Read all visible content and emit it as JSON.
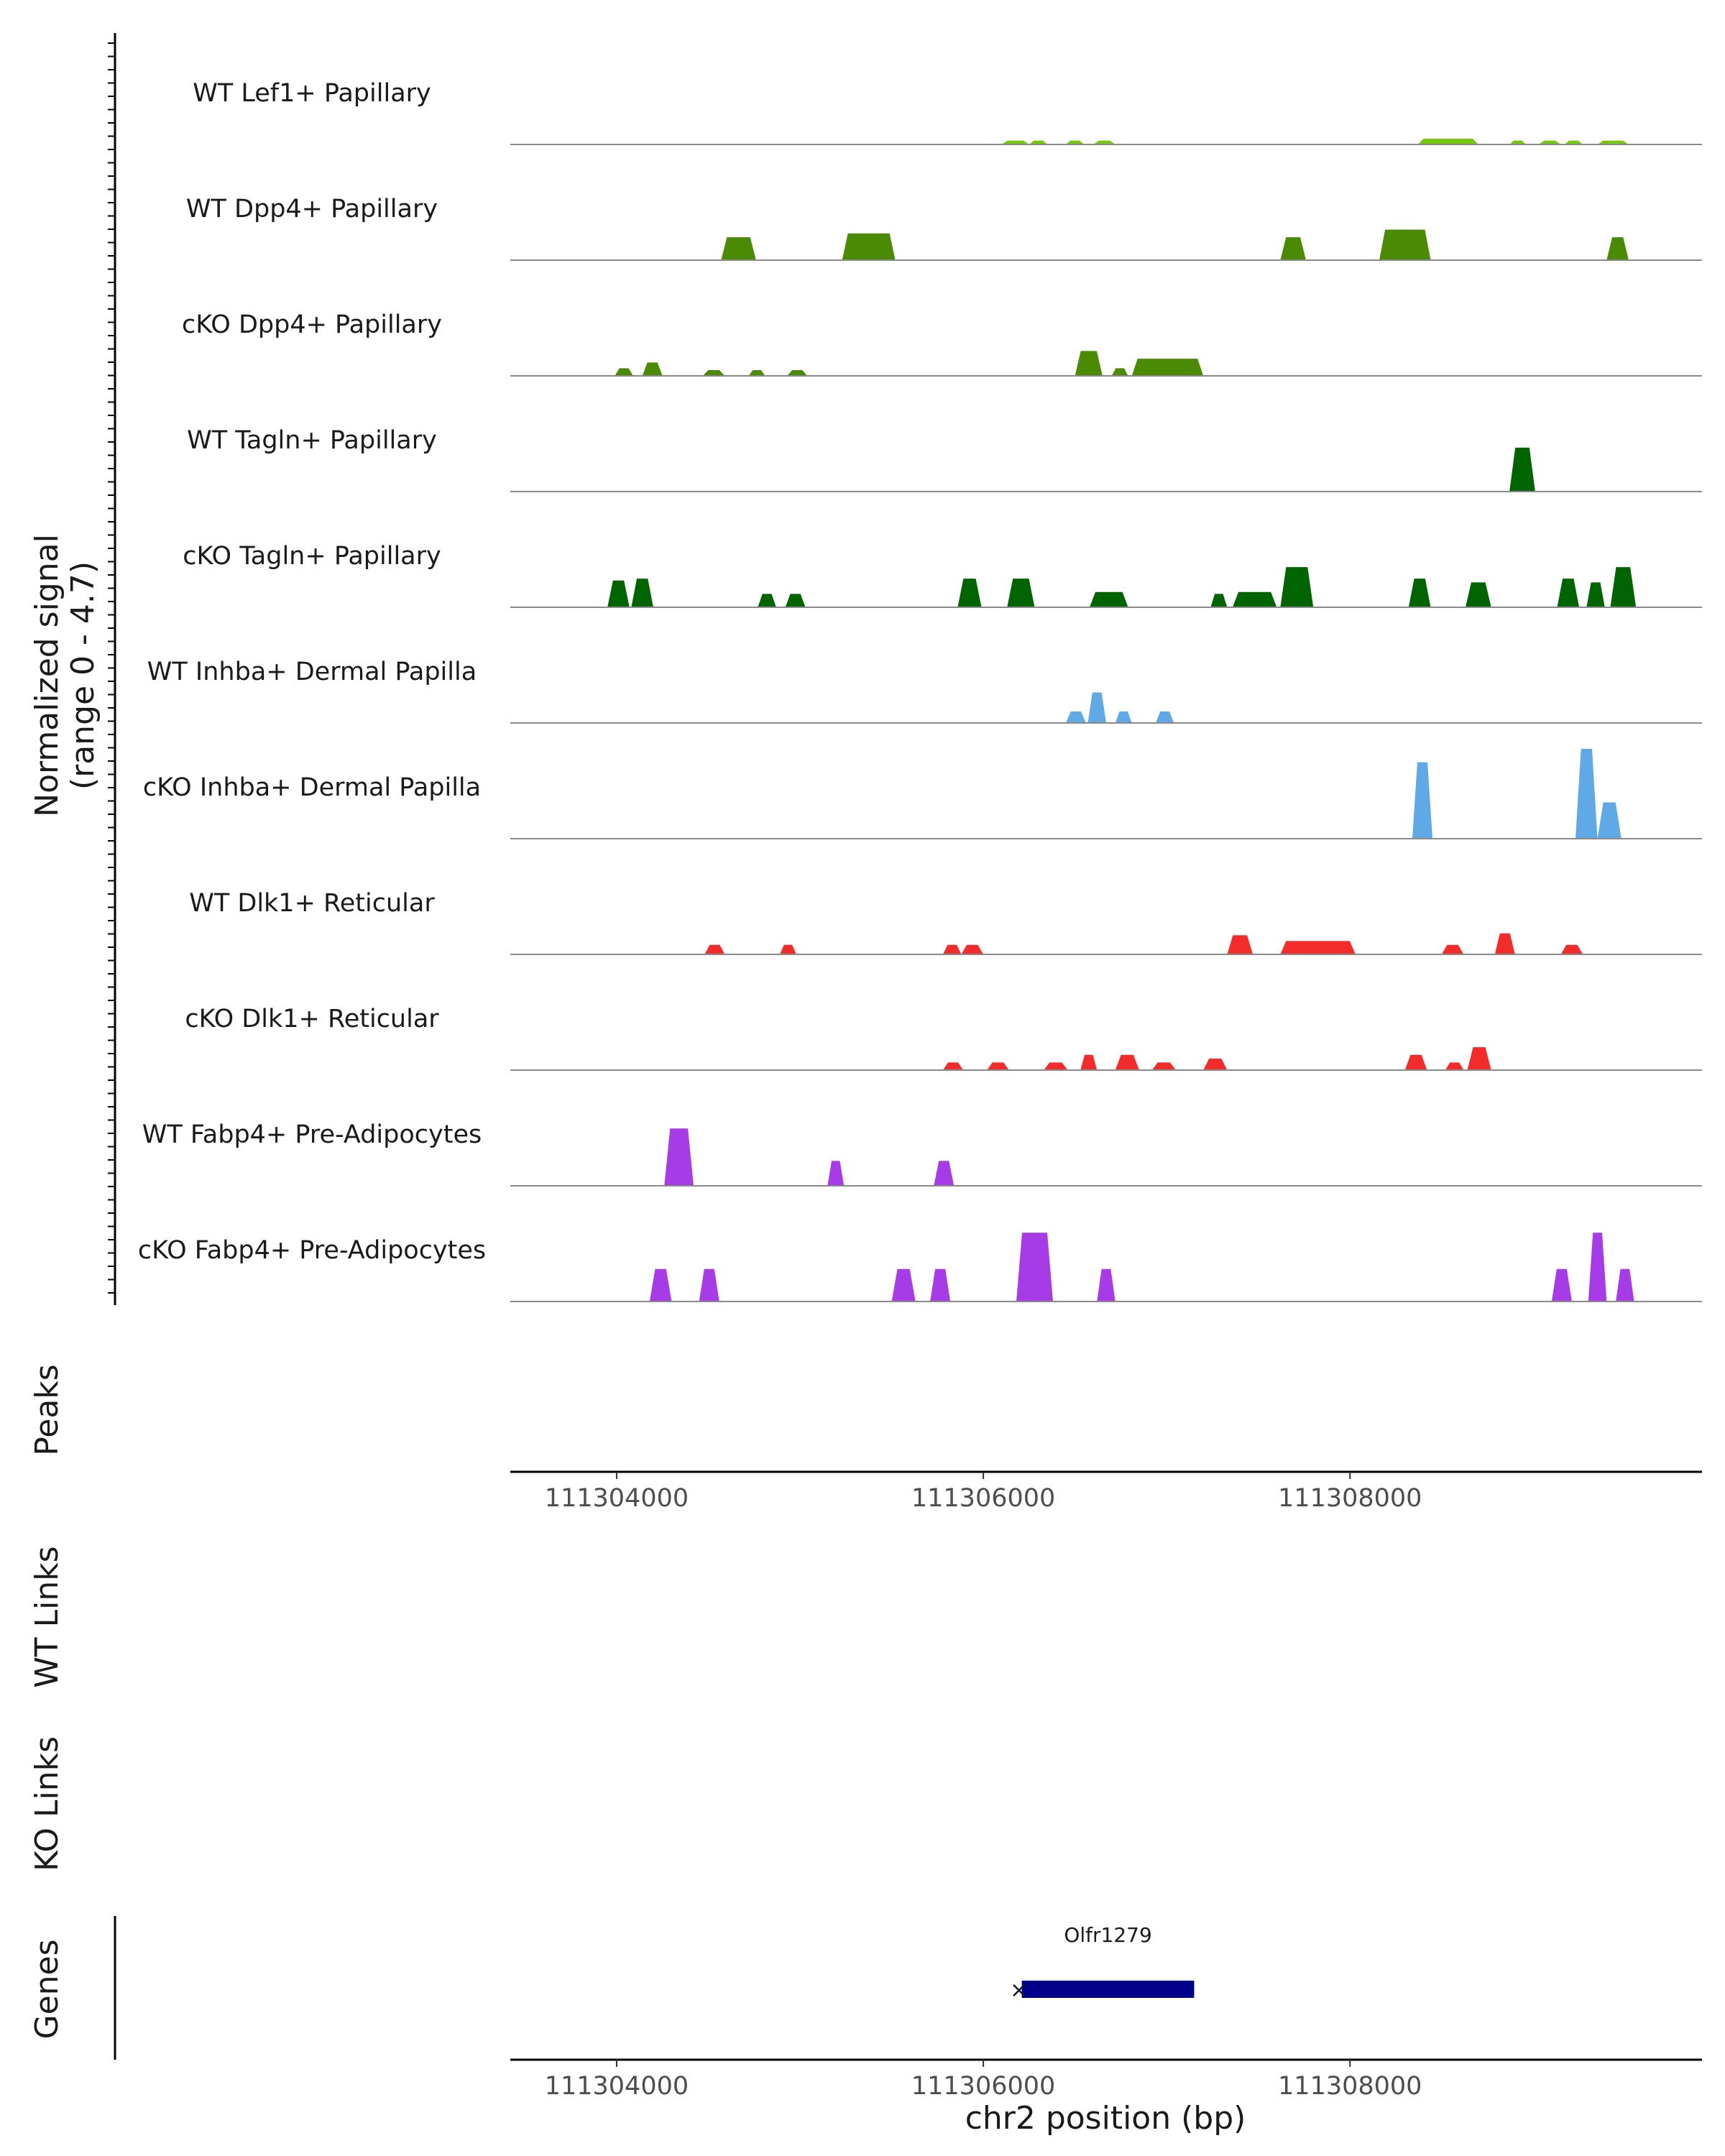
{
  "chart_data": {
    "type": "area",
    "title": "",
    "xlabel": "chr2 position (bp)",
    "coverage_ylabel": "Normalized signal",
    "coverage_range": "(range 0 - 4.7)",
    "ylim": [
      0,
      4.7
    ],
    "xlim": [
      111303420,
      111309920
    ],
    "x_ticks": [
      111304000,
      111306000,
      111308000
    ],
    "x_tick_labels": [
      "111304000",
      "111306000",
      "111308000"
    ],
    "tracks": [
      {
        "name": "WT Lef1+ Papillary",
        "color": "#76c80f",
        "peaks": [
          [
            111306100,
            111306250,
            0.2
          ],
          [
            111306250,
            111306350,
            0.2
          ],
          [
            111306450,
            111306550,
            0.2
          ],
          [
            111306600,
            111306720,
            0.2
          ],
          [
            111308370,
            111308700,
            0.3
          ],
          [
            111308870,
            111308960,
            0.2
          ],
          [
            111309030,
            111309150,
            0.2
          ],
          [
            111309170,
            111309270,
            0.2
          ],
          [
            111309350,
            111309520,
            0.2
          ]
        ]
      },
      {
        "name": "WT Dpp4+ Papillary",
        "color": "#4a8a05",
        "peaks": [
          [
            111304570,
            111304760,
            1.2
          ],
          [
            111305230,
            111305520,
            1.4
          ],
          [
            111307620,
            111307760,
            1.2
          ],
          [
            111308160,
            111308440,
            1.6
          ],
          [
            111309400,
            111309520,
            1.2
          ]
        ]
      },
      {
        "name": "cKO Dpp4+ Papillary",
        "color": "#4a8a05",
        "peaks": [
          [
            111303990,
            111304090,
            0.4
          ],
          [
            111304140,
            111304250,
            0.7
          ],
          [
            111304470,
            111304590,
            0.3
          ],
          [
            111304720,
            111304810,
            0.3
          ],
          [
            111304930,
            111305040,
            0.3
          ],
          [
            111306500,
            111306650,
            1.3
          ],
          [
            111306700,
            111306790,
            0.4
          ],
          [
            111306810,
            111307200,
            0.9
          ]
        ]
      },
      {
        "name": "WT Tagln+ Papillary",
        "color": "#006400",
        "peaks": [
          [
            111308870,
            111309010,
            2.3
          ]
        ]
      },
      {
        "name": "cKO Tagln+ Papillary",
        "color": "#006400",
        "peaks": [
          [
            111303950,
            111304070,
            1.4
          ],
          [
            111304080,
            111304200,
            1.5
          ],
          [
            111304770,
            111304870,
            0.7
          ],
          [
            111304920,
            111305030,
            0.7
          ],
          [
            111305860,
            111305990,
            1.5
          ],
          [
            111306130,
            111306280,
            1.5
          ],
          [
            111306580,
            111306790,
            0.8
          ],
          [
            111307240,
            111307330,
            0.7
          ],
          [
            111307360,
            111307600,
            0.8
          ],
          [
            111307620,
            111307800,
            2.1
          ],
          [
            111308320,
            111308440,
            1.5
          ],
          [
            111308630,
            111308770,
            1.3
          ],
          [
            111309130,
            111309250,
            1.5
          ],
          [
            111309290,
            111309390,
            1.3
          ],
          [
            111309420,
            111309560,
            2.1
          ]
        ]
      },
      {
        "name": "WT Inhba+ Dermal Papilla",
        "color": "#5fa9e6",
        "peaks": [
          [
            111306450,
            111306560,
            0.6
          ],
          [
            111306570,
            111306670,
            1.6
          ],
          [
            111306720,
            111306810,
            0.6
          ],
          [
            111306940,
            111307040,
            0.6
          ]
        ]
      },
      {
        "name": "cKO Inhba+ Dermal Papilla",
        "color": "#5fa9e6",
        "peaks": [
          [
            111308340,
            111308450,
            4.0
          ],
          [
            111309230,
            111309350,
            4.7
          ],
          [
            111309350,
            111309480,
            1.9
          ]
        ]
      },
      {
        "name": "WT Dlk1+ Reticular",
        "color": "#f22b2b",
        "peaks": [
          [
            111304480,
            111304590,
            0.5
          ],
          [
            111304890,
            111304980,
            0.5
          ],
          [
            111305780,
            111305880,
            0.5
          ],
          [
            111305880,
            111306000,
            0.5
          ],
          [
            111307330,
            111307470,
            1.0
          ],
          [
            111307620,
            111308030,
            0.7
          ],
          [
            111308500,
            111308620,
            0.5
          ],
          [
            111308790,
            111308900,
            1.1
          ],
          [
            111309150,
            111309270,
            0.5
          ]
        ]
      },
      {
        "name": "cKO Dlk1+ Reticular",
        "color": "#f22b2b",
        "peaks": [
          [
            111305780,
            111305890,
            0.4
          ],
          [
            111306020,
            111306140,
            0.4
          ],
          [
            111306330,
            111306460,
            0.4
          ],
          [
            111306530,
            111306620,
            0.8
          ],
          [
            111306720,
            111306850,
            0.8
          ],
          [
            111306920,
            111307050,
            0.4
          ],
          [
            111307200,
            111307330,
            0.6
          ],
          [
            111308300,
            111308420,
            0.8
          ],
          [
            111308520,
            111308620,
            0.4
          ],
          [
            111308640,
            111308770,
            1.2
          ]
        ]
      },
      {
        "name": "WT Fabp4+ Pre-Adipocytes",
        "color": "#a83be8",
        "peaks": [
          [
            111304260,
            111304420,
            3.0
          ],
          [
            111305150,
            111305240,
            1.3
          ],
          [
            111305730,
            111305840,
            1.3
          ]
        ]
      },
      {
        "name": "cKO Fabp4+ Pre-Adipocytes",
        "color": "#a83be8",
        "peaks": [
          [
            111304180,
            111304300,
            1.7
          ],
          [
            111304450,
            111304560,
            1.7
          ],
          [
            111305500,
            111305630,
            1.7
          ],
          [
            111305710,
            111305820,
            1.7
          ],
          [
            111306180,
            111306380,
            3.6
          ],
          [
            111306620,
            111306720,
            1.7
          ],
          [
            111309100,
            111309210,
            1.7
          ],
          [
            111309300,
            111309400,
            3.6
          ],
          [
            111309450,
            111309550,
            1.7
          ]
        ]
      }
    ],
    "side_panels": [
      "Peaks",
      "WT Links",
      "KO Links",
      "Genes"
    ],
    "genes": [
      {
        "name": "Olfr1279",
        "start": 111306210,
        "end": 111307150,
        "strand": "-",
        "color": "#00008b"
      }
    ]
  }
}
